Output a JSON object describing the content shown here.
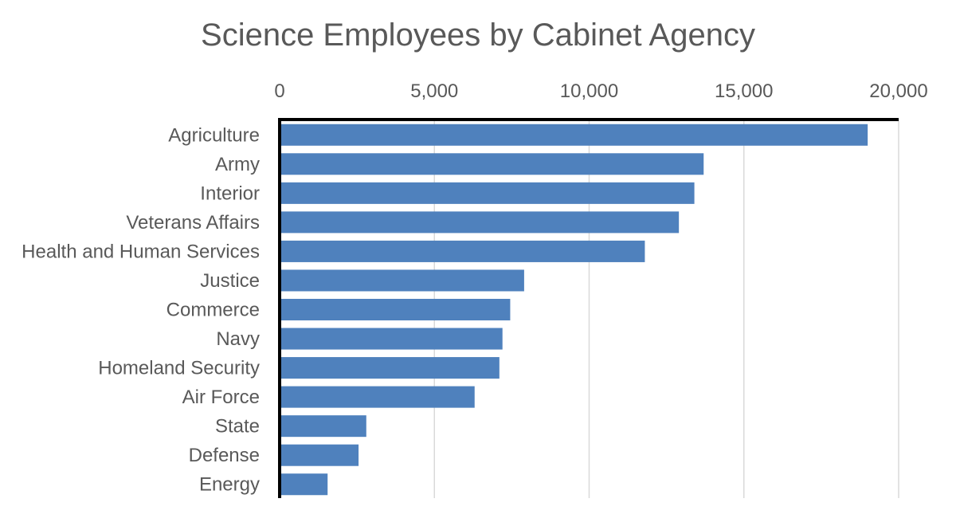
{
  "chart_data": {
    "type": "bar",
    "orientation": "horizontal",
    "title": "Science Employees by Cabinet Agency",
    "xlabel": "",
    "ylabel": "",
    "axis_position": "top",
    "xlim": [
      0,
      20000
    ],
    "xticks": [
      0,
      5000,
      10000,
      15000,
      20000
    ],
    "xtick_labels": [
      "0",
      "5,000",
      "10,000",
      "15,000",
      "20,000"
    ],
    "grid": true,
    "legend": "none",
    "bar_color": "#4f81bd",
    "categories": [
      "Agriculture",
      "Army",
      "Interior",
      "Veterans Affairs",
      "Health and Human Services",
      "Justice",
      "Commerce",
      "Navy",
      "Homeland Security",
      "Air Force",
      "State",
      "Defense",
      "Energy"
    ],
    "values": [
      19000,
      13700,
      13400,
      12900,
      11800,
      7900,
      7450,
      7200,
      7100,
      6300,
      2800,
      2550,
      1550
    ]
  }
}
